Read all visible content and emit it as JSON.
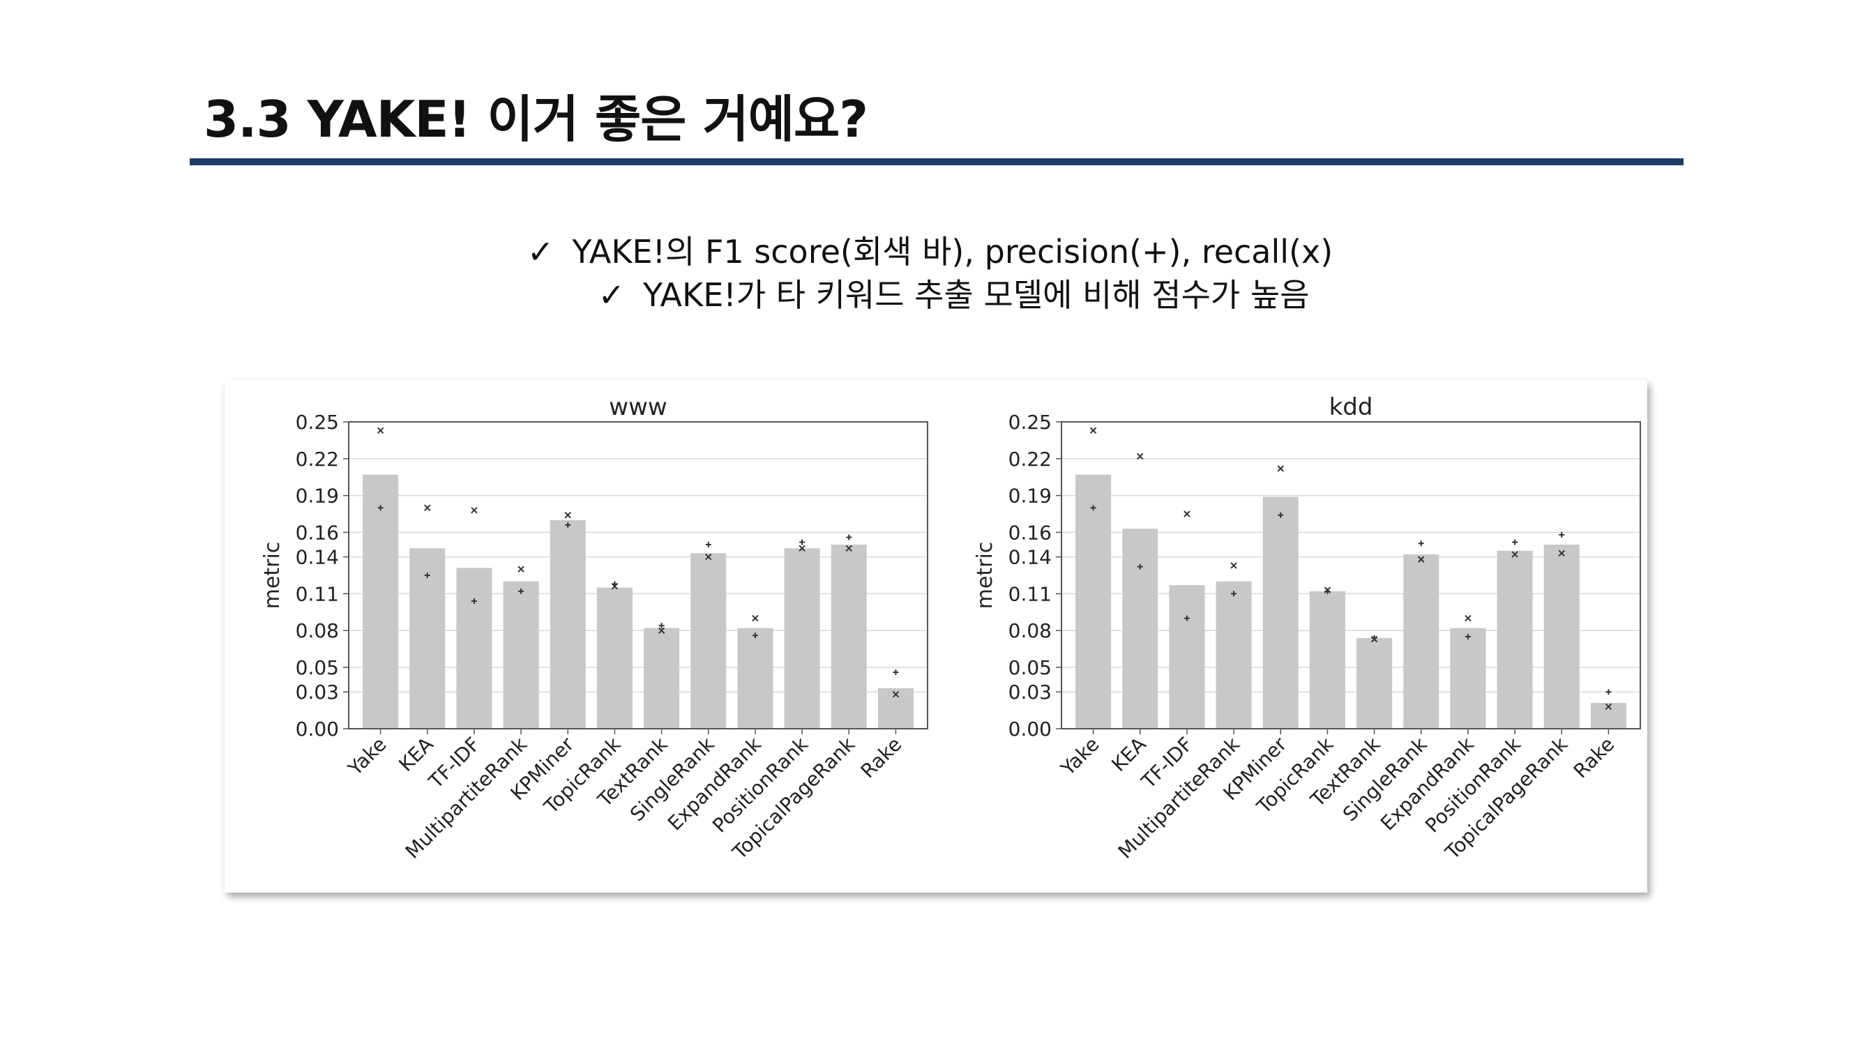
{
  "slide": {
    "title": "3.3 YAKE! 이거 좋은 거예요?",
    "bullets": [
      {
        "check": "✓",
        "text": "YAKE!의 F1 score(회색 바), precision(+), recall(x)"
      },
      {
        "check": "✓",
        "text": "YAKE!가 타 키워드 추출 모델에 비해 점수가 높음"
      }
    ]
  },
  "colors": {
    "title_rule": "#1f3c66",
    "bar_fill": "#c8c8c8",
    "grid": "#d9d9d9",
    "axis": "#555555",
    "marker": "#333333"
  },
  "chart_data": [
    {
      "type": "bar",
      "title": "www",
      "ylabel": "metric",
      "xlabel": "",
      "ylim": [
        0,
        0.25
      ],
      "yticks": [
        "0.00",
        "0.03",
        "0.05",
        "0.08",
        "0.11",
        "0.14",
        "0.16",
        "0.19",
        "0.22",
        "0.25"
      ],
      "grid": true,
      "categories": [
        "Yake",
        "KEA",
        "TF-IDF",
        "MultipartiteRank",
        "KPMiner",
        "TopicRank",
        "TextRank",
        "SingleRank",
        "ExpandRank",
        "PositionRank",
        "TopicalPageRank",
        "Rake"
      ],
      "series": [
        {
          "values": [
            0.207,
            0.147,
            0.131,
            0.12,
            0.17,
            0.115,
            0.082,
            0.143,
            0.082,
            0.147,
            0.15,
            0.033
          ]
        },
        {
          "values": [
            0.18,
            0.125,
            0.104,
            0.112,
            0.166,
            0.118,
            0.084,
            0.15,
            0.076,
            0.152,
            0.156,
            0.046
          ]
        },
        {
          "values": [
            0.243,
            0.18,
            0.178,
            0.13,
            0.174,
            0.116,
            0.08,
            0.14,
            0.09,
            0.147,
            0.147,
            0.028
          ]
        }
      ]
    },
    {
      "type": "bar",
      "title": "kdd",
      "ylabel": "metric",
      "xlabel": "",
      "ylim": [
        0,
        0.25
      ],
      "yticks": [
        "0.00",
        "0.03",
        "0.05",
        "0.08",
        "0.11",
        "0.14",
        "0.16",
        "0.19",
        "0.22",
        "0.25"
      ],
      "grid": true,
      "categories": [
        "Yake",
        "KEA",
        "TF-IDF",
        "MultipartiteRank",
        "KPMiner",
        "TopicRank",
        "TextRank",
        "SingleRank",
        "ExpandRank",
        "PositionRank",
        "TopicalPageRank",
        "Rake"
      ],
      "series": [
        {
          "values": [
            0.207,
            0.163,
            0.117,
            0.12,
            0.189,
            0.112,
            0.074,
            0.142,
            0.082,
            0.145,
            0.15,
            0.021
          ]
        },
        {
          "values": [
            0.18,
            0.132,
            0.09,
            0.11,
            0.174,
            0.112,
            0.074,
            0.151,
            0.075,
            0.152,
            0.158,
            0.03
          ]
        },
        {
          "values": [
            0.243,
            0.222,
            0.175,
            0.133,
            0.212,
            0.113,
            0.073,
            0.138,
            0.09,
            0.142,
            0.143,
            0.018
          ]
        }
      ]
    }
  ]
}
